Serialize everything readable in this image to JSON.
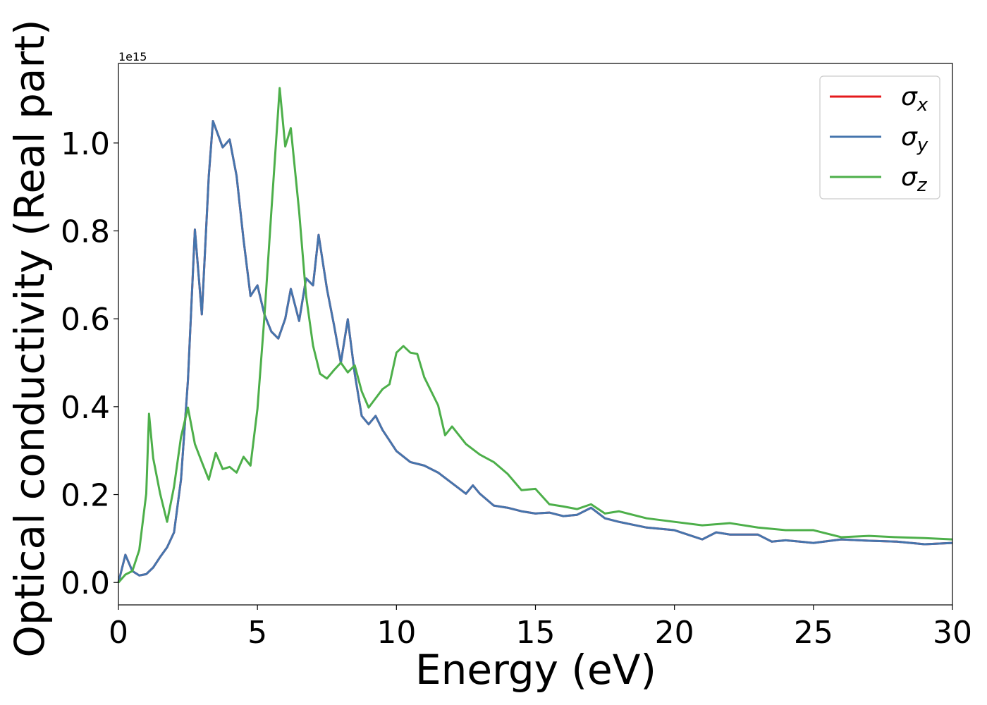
{
  "chart_data": {
    "type": "line",
    "xlabel": "Energy (eV)",
    "ylabel": "Optical conductivity (Real part)",
    "offset_text": "1e15",
    "xlim": [
      0,
      30
    ],
    "ylim": [
      -0.051,
      1.181
    ],
    "xticks": [
      0,
      5,
      10,
      15,
      20,
      25,
      30
    ],
    "yticks": [
      {
        "value": 0,
        "label": "0.0"
      },
      {
        "value": 0.2,
        "label": "0.2"
      },
      {
        "value": 0.4,
        "label": "0.4"
      },
      {
        "value": 0.6,
        "label": "0.6"
      },
      {
        "value": 0.8,
        "label": "0.8"
      },
      {
        "value": 1.0,
        "label": "1.0"
      }
    ],
    "grid": false,
    "legend": "upper right",
    "series": [
      {
        "name": "σx",
        "color": "#e41a1c",
        "x": [
          0,
          0.25,
          0.5,
          0.75,
          1,
          1.25,
          1.5,
          1.75,
          2,
          2.25,
          2.5,
          2.75,
          3,
          3.25,
          3.4,
          3.75,
          4,
          4.25,
          4.5,
          4.75,
          5,
          5.25,
          5.5,
          5.75,
          6,
          6.2,
          6.5,
          6.75,
          7,
          7.2,
          7.5,
          7.75,
          8,
          8.25,
          8.5,
          8.75,
          9,
          9.25,
          9.5,
          9.75,
          10,
          10.5,
          11,
          11.5,
          12,
          12.5,
          12.75,
          13,
          13.5,
          14,
          14.5,
          15,
          15.5,
          16,
          16.5,
          17,
          17.5,
          18,
          19,
          20,
          21,
          21.5,
          22,
          23,
          23.5,
          24,
          25,
          26,
          27,
          28,
          29,
          30
        ],
        "values": [
          0,
          0.063,
          0.026,
          0.016,
          0.019,
          0.034,
          0.058,
          0.08,
          0.114,
          0.234,
          0.46,
          0.803,
          0.61,
          0.925,
          1.05,
          0.99,
          1.008,
          0.925,
          0.78,
          0.652,
          0.676,
          0.61,
          0.571,
          0.555,
          0.6,
          0.668,
          0.595,
          0.692,
          0.676,
          0.791,
          0.668,
          0.587,
          0.5,
          0.599,
          0.475,
          0.379,
          0.36,
          0.379,
          0.347,
          0.323,
          0.299,
          0.274,
          0.266,
          0.25,
          0.226,
          0.202,
          0.221,
          0.202,
          0.175,
          0.17,
          0.162,
          0.157,
          0.159,
          0.151,
          0.154,
          0.17,
          0.146,
          0.138,
          0.125,
          0.119,
          0.098,
          0.114,
          0.109,
          0.109,
          0.093,
          0.096,
          0.09,
          0.098,
          0.095,
          0.093,
          0.087,
          0.09
        ]
      },
      {
        "name": "σy",
        "color": "#4575ad",
        "x": [
          0,
          0.25,
          0.5,
          0.75,
          1,
          1.25,
          1.5,
          1.75,
          2,
          2.25,
          2.5,
          2.75,
          3,
          3.25,
          3.4,
          3.75,
          4,
          4.25,
          4.5,
          4.75,
          5,
          5.25,
          5.5,
          5.75,
          6,
          6.2,
          6.5,
          6.75,
          7,
          7.2,
          7.5,
          7.75,
          8,
          8.25,
          8.5,
          8.75,
          9,
          9.25,
          9.5,
          9.75,
          10,
          10.5,
          11,
          11.5,
          12,
          12.5,
          12.75,
          13,
          13.5,
          14,
          14.5,
          15,
          15.5,
          16,
          16.5,
          17,
          17.5,
          18,
          19,
          20,
          21,
          21.5,
          22,
          23,
          23.5,
          24,
          25,
          26,
          27,
          28,
          29,
          30
        ],
        "values": [
          0,
          0.063,
          0.026,
          0.016,
          0.019,
          0.034,
          0.058,
          0.08,
          0.114,
          0.234,
          0.46,
          0.803,
          0.61,
          0.925,
          1.05,
          0.99,
          1.008,
          0.925,
          0.78,
          0.652,
          0.676,
          0.61,
          0.571,
          0.555,
          0.6,
          0.668,
          0.595,
          0.692,
          0.676,
          0.791,
          0.668,
          0.587,
          0.5,
          0.599,
          0.475,
          0.379,
          0.36,
          0.379,
          0.347,
          0.323,
          0.299,
          0.274,
          0.266,
          0.25,
          0.226,
          0.202,
          0.221,
          0.202,
          0.175,
          0.17,
          0.162,
          0.157,
          0.159,
          0.151,
          0.154,
          0.17,
          0.146,
          0.138,
          0.125,
          0.119,
          0.098,
          0.114,
          0.109,
          0.109,
          0.093,
          0.096,
          0.09,
          0.098,
          0.095,
          0.093,
          0.087,
          0.09
        ]
      },
      {
        "name": "σz",
        "color": "#4daf4a",
        "x": [
          0,
          0.25,
          0.5,
          0.75,
          1,
          1.1,
          1.25,
          1.5,
          1.75,
          2,
          2.25,
          2.5,
          2.75,
          3,
          3.25,
          3.5,
          3.75,
          4,
          4.25,
          4.5,
          4.75,
          5,
          5.25,
          5.5,
          5.8,
          6,
          6.2,
          6.5,
          6.75,
          7,
          7.25,
          7.5,
          7.75,
          8,
          8.25,
          8.5,
          8.75,
          9,
          9.25,
          9.5,
          9.75,
          10,
          10.25,
          10.5,
          10.75,
          11,
          11.5,
          11.75,
          12,
          12.5,
          13,
          13.5,
          14,
          14.5,
          15,
          15.5,
          16,
          16.5,
          17,
          17.5,
          18,
          19,
          20,
          21,
          22,
          23,
          24,
          25,
          26,
          27,
          28,
          29,
          30
        ],
        "values": [
          0,
          0.018,
          0.026,
          0.074,
          0.202,
          0.384,
          0.283,
          0.202,
          0.138,
          0.218,
          0.331,
          0.398,
          0.315,
          0.274,
          0.234,
          0.295,
          0.258,
          0.263,
          0.25,
          0.286,
          0.266,
          0.395,
          0.604,
          0.844,
          1.125,
          0.992,
          1.034,
          0.844,
          0.652,
          0.539,
          0.475,
          0.464,
          0.483,
          0.5,
          0.478,
          0.494,
          0.435,
          0.398,
          0.419,
          0.44,
          0.451,
          0.523,
          0.538,
          0.523,
          0.52,
          0.467,
          0.403,
          0.335,
          0.355,
          0.315,
          0.291,
          0.274,
          0.247,
          0.21,
          0.213,
          0.178,
          0.173,
          0.167,
          0.178,
          0.157,
          0.162,
          0.146,
          0.138,
          0.13,
          0.135,
          0.125,
          0.119,
          0.119,
          0.103,
          0.106,
          0.103,
          0.101,
          0.098
        ]
      }
    ]
  }
}
